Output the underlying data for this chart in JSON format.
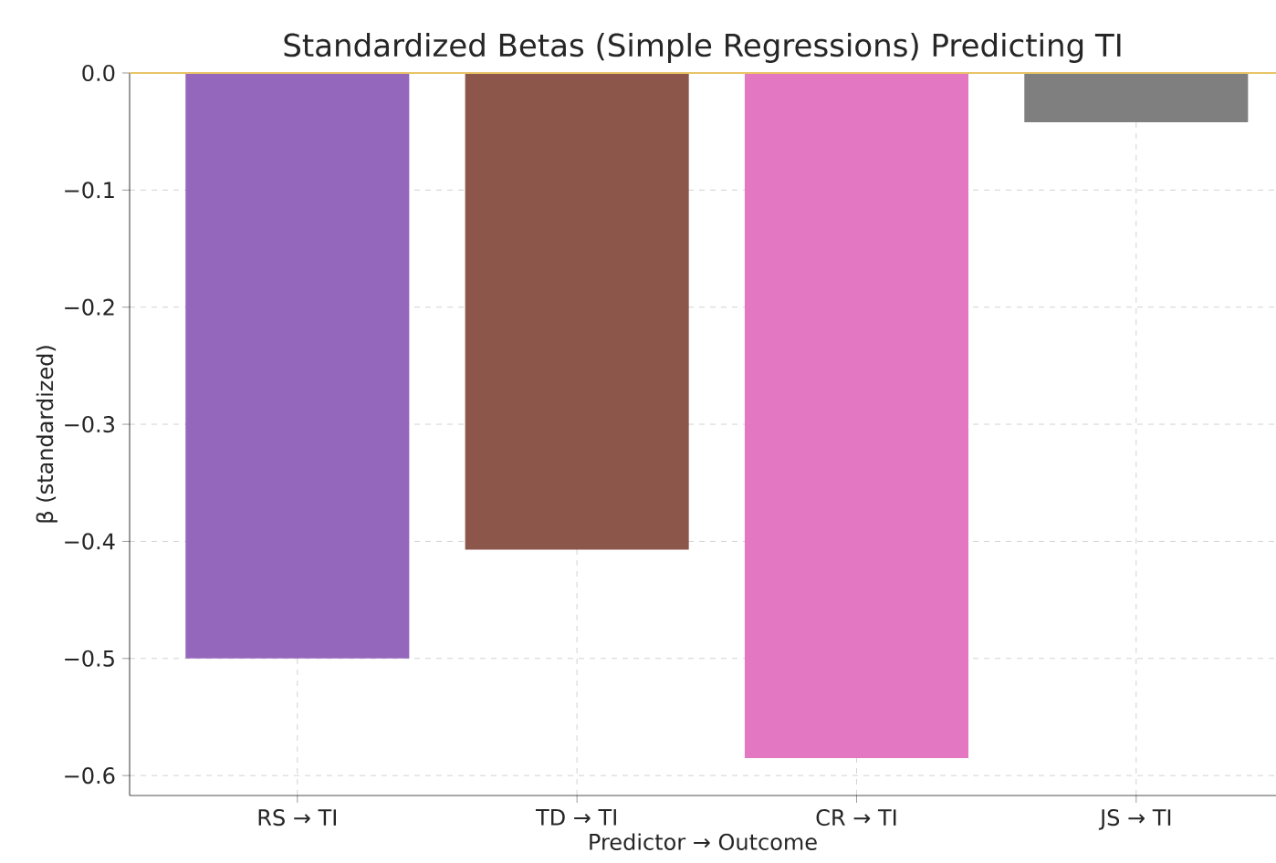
{
  "chart_data": {
    "type": "bar",
    "title": "Standardized Betas (Simple Regressions) Predicting TI",
    "xlabel": "Predictor → Outcome",
    "ylabel": "β (standardized)",
    "categories": [
      "RS → TI",
      "TD → TI",
      "CR → TI",
      "JS → TI"
    ],
    "values": [
      -0.5,
      -0.407,
      -0.585,
      -0.042
    ],
    "colors": [
      "#9467bd",
      "#8c564b",
      "#e377c2",
      "#7f7f7f"
    ],
    "ylim": [
      -0.617,
      0
    ],
    "yticks": [
      {
        "value": -0.6,
        "label": "−0.6"
      },
      {
        "value": -0.5,
        "label": "−0.5"
      },
      {
        "value": -0.4,
        "label": "−0.4"
      },
      {
        "value": -0.3,
        "label": "−0.3"
      },
      {
        "value": -0.2,
        "label": "−0.2"
      },
      {
        "value": -0.1,
        "label": "−0.1"
      },
      {
        "value": 0,
        "label": "0.0"
      }
    ],
    "ref_lines": [
      {
        "axis": "y",
        "value": 0,
        "color": "#e8c468"
      }
    ],
    "grid": true
  }
}
